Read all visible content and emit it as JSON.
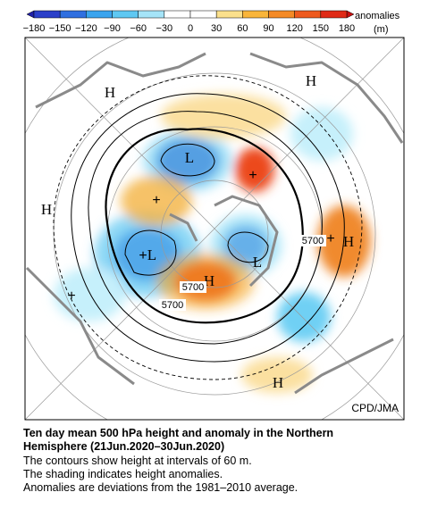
{
  "colorbar": {
    "ticks": [
      "−180",
      "−150",
      "−120",
      "−90",
      "−60",
      "−30",
      "0",
      "30",
      "60",
      "90",
      "120",
      "150",
      "180"
    ],
    "title": "anomalies",
    "unit": "(m)"
  },
  "map": {
    "highs_lows": [
      "H",
      "H",
      "H",
      "H",
      "H",
      "H",
      "L",
      "L",
      "L"
    ],
    "crosses": [
      "+",
      "+",
      "+",
      "+",
      "+"
    ],
    "contour_labels": [
      "5700",
      "5700",
      "5700"
    ],
    "credit": "CPD/JMA"
  },
  "caption": {
    "title_lines": [
      "Ten day mean 500 hPa height and anomaly in the Northern",
      "Hemisphere (21Jun.2020–30Jun.2020)"
    ],
    "lines": [
      "The contours show height at intervals of 60 m.",
      "The shading indicates height anomalies.",
      "Anomalies are deviations from the 1981–2010 average."
    ]
  }
}
